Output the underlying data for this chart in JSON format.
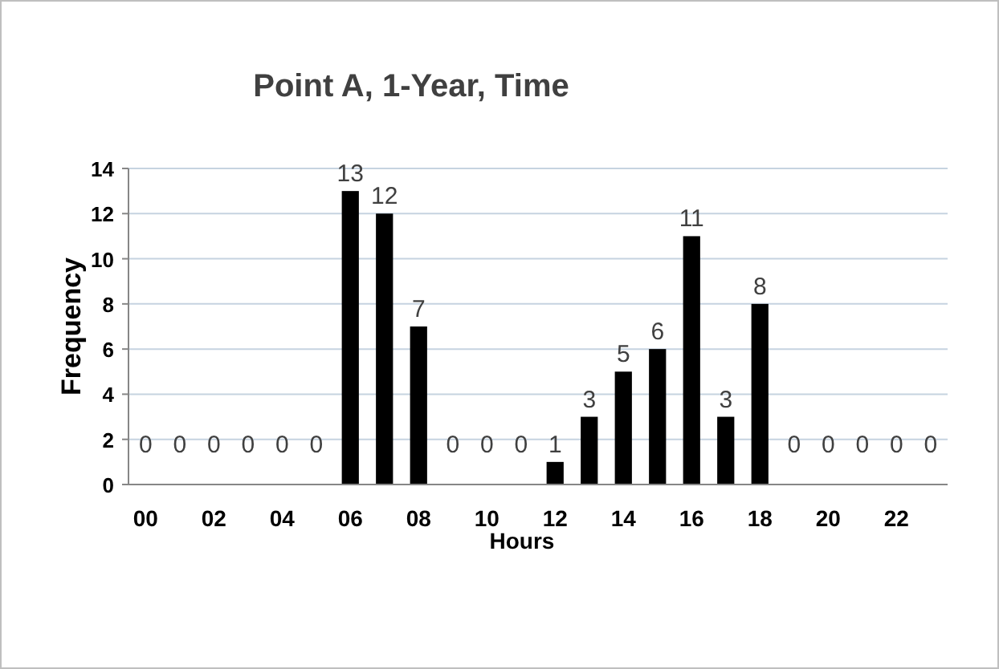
{
  "chart_data": {
    "type": "bar",
    "title": "Point A, 1-Year, Time",
    "xlabel": "Hours",
    "ylabel": "Frequency",
    "categories": [
      "00",
      null,
      "02",
      null,
      "04",
      null,
      "06",
      null,
      "08",
      null,
      "10",
      null,
      "12",
      null,
      "14",
      null,
      "16",
      null,
      "18",
      null,
      "20",
      null,
      "22",
      null
    ],
    "values": [
      0,
      0,
      0,
      0,
      0,
      0,
      13,
      12,
      7,
      0,
      0,
      0,
      1,
      3,
      5,
      6,
      11,
      3,
      8,
      0,
      0,
      0,
      0,
      0
    ],
    "color": "#000000",
    "ylim": [
      0,
      14
    ],
    "yticks": [
      0,
      2,
      4,
      6,
      8,
      10,
      12,
      14
    ],
    "grid": "y",
    "data_labels": true
  }
}
